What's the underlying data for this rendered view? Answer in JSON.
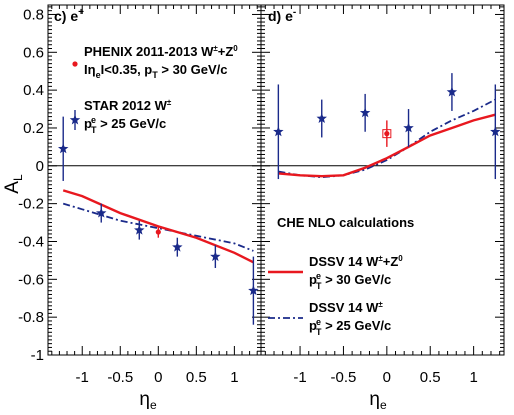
{
  "chart_data": {
    "type": "scatter",
    "ylabel": "A",
    "ylabel_sub": "L",
    "xlabel": "η",
    "xlabel_sub": "e",
    "ylim": [
      -1.0,
      0.85
    ],
    "xlim": [
      -1.45,
      1.35
    ],
    "y_ticks": [
      -1,
      -0.8,
      -0.6,
      -0.4,
      -0.2,
      0,
      0.2,
      0.4,
      0.6,
      0.8
    ],
    "y_tick_labels": [
      "-1",
      "-0.8",
      "-0.6",
      "-0.4",
      "-0.2",
      "0",
      "0.2",
      "0.4",
      "0.6",
      "0.8"
    ],
    "x_ticks": [
      -1,
      -0.5,
      0,
      0.5,
      1
    ],
    "x_tick_labels": [
      "-1",
      "-0.5",
      "0",
      "0.5",
      "1"
    ],
    "colors": {
      "star": "#1a2a8a",
      "phenix": "#e8181f",
      "dssv_wz": "#e8181f",
      "dssv_w": "#1a2a8a"
    },
    "panels": [
      {
        "id": "left",
        "title": "c) e",
        "title_sup": "+",
        "star": {
          "x": [
            -1.25,
            -0.75,
            -0.25,
            0.25,
            0.75,
            1.25
          ],
          "y": [
            0.09,
            -0.25,
            -0.34,
            -0.43,
            -0.48,
            -0.66
          ],
          "err": [
            0.17,
            0.05,
            0.05,
            0.05,
            0.06,
            0.18
          ]
        },
        "phenix": {
          "x": [
            0.0
          ],
          "y": [
            -0.35
          ],
          "err": [
            0.03
          ]
        },
        "dssv_wz": {
          "x": [
            -1.25,
            -1.0,
            -0.5,
            0.0,
            0.5,
            1.0,
            1.25
          ],
          "y": [
            -0.13,
            -0.16,
            -0.25,
            -0.32,
            -0.38,
            -0.46,
            -0.51
          ]
        },
        "dssv_w": {
          "x": [
            -1.25,
            -1.0,
            -0.5,
            0.0,
            0.5,
            1.0,
            1.25
          ],
          "y": [
            -0.2,
            -0.23,
            -0.29,
            -0.33,
            -0.37,
            -0.41,
            -0.45
          ]
        }
      },
      {
        "id": "right",
        "title": "d) e",
        "title_sup": "-",
        "star": {
          "x": [
            -1.25,
            -0.75,
            -0.25,
            0.25,
            0.75,
            1.25
          ],
          "y": [
            0.18,
            0.25,
            0.28,
            0.2,
            0.39,
            0.18
          ],
          "err": [
            0.25,
            0.1,
            0.1,
            0.1,
            0.1,
            0.25
          ]
        },
        "phenix": {
          "x": [
            0.0
          ],
          "y": [
            0.17
          ],
          "err": [
            0.07
          ]
        },
        "dssv_wz": {
          "x": [
            -1.25,
            -1.0,
            -0.75,
            -0.5,
            -0.25,
            0.0,
            0.25,
            0.5,
            0.75,
            1.0,
            1.25
          ],
          "y": [
            -0.04,
            -0.05,
            -0.055,
            -0.05,
            -0.01,
            0.04,
            0.1,
            0.16,
            0.2,
            0.24,
            0.27
          ]
        },
        "dssv_w": {
          "x": [
            -1.25,
            -1.0,
            -0.75,
            -0.5,
            -0.25,
            0.0,
            0.25,
            0.5,
            0.75,
            1.0,
            1.25
          ],
          "y": [
            -0.03,
            -0.05,
            -0.06,
            -0.05,
            -0.02,
            0.03,
            0.1,
            0.18,
            0.24,
            0.29,
            0.35
          ]
        }
      }
    ],
    "legend": {
      "phenix_line1": "PHENIX 2011-2013 W",
      "phenix_line1_sup": "±",
      "phenix_line1_tail": "+Z",
      "phenix_line1_tail_sup": "0",
      "phenix_line2_a": "Iη",
      "phenix_line2_sub": "e",
      "phenix_line2_b": "I<0.35, p",
      "phenix_line2_sub2": "T",
      "phenix_line2_c": " > 30 GeV/c",
      "star_line1": "STAR 2012 W",
      "star_line1_sup": "±",
      "star_line2_a": "p",
      "star_line2_sup": "e",
      "star_line2_sub": "T",
      "star_line2_b": " > 25 GeV/c",
      "che_title": "CHE NLO calculations",
      "dssv_wz_line1": "DSSV 14 W",
      "dssv_wz_line1_sup": "±",
      "dssv_wz_line1_tail": "+Z",
      "dssv_wz_line1_tail_sup": "0",
      "dssv_wz_line2_a": "p",
      "dssv_wz_line2_sup": "e",
      "dssv_wz_line2_sub": "T",
      "dssv_wz_line2_b": " > 30 GeV/c",
      "dssv_w_line1": "DSSV 14 W",
      "dssv_w_line1_sup": "±",
      "dssv_w_line2_a": "p",
      "dssv_w_line2_sup": "e",
      "dssv_w_line2_sub": "T",
      "dssv_w_line2_b": " > 25 GeV/c"
    }
  }
}
